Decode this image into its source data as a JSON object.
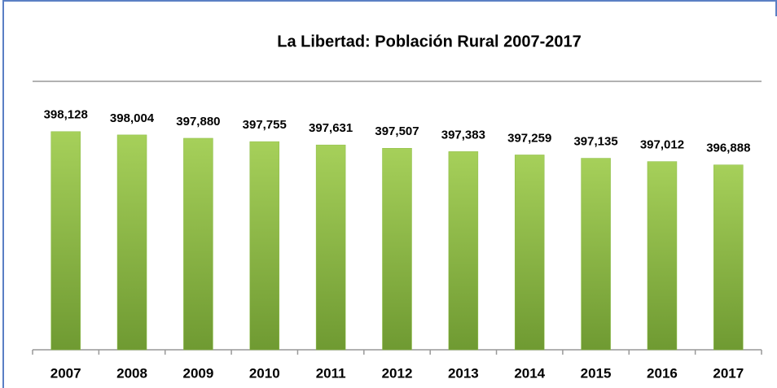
{
  "chart_data": {
    "type": "bar",
    "title": "La Libertad: Población Rural 2007-2017",
    "categories": [
      "2007",
      "2008",
      "2009",
      "2010",
      "2011",
      "2012",
      "2013",
      "2014",
      "2015",
      "2016",
      "2017"
    ],
    "values": [
      398128,
      398004,
      397880,
      397755,
      397631,
      397507,
      397383,
      397259,
      397135,
      397012,
      396888
    ],
    "value_labels": [
      "398,128",
      "398,004",
      "397,880",
      "397,755",
      "397,631",
      "397,507",
      "397,383",
      "397,259",
      "397,135",
      "397,012",
      "396,888"
    ],
    "color": "#8cbd45",
    "ylim": [
      390000,
      400000
    ]
  }
}
